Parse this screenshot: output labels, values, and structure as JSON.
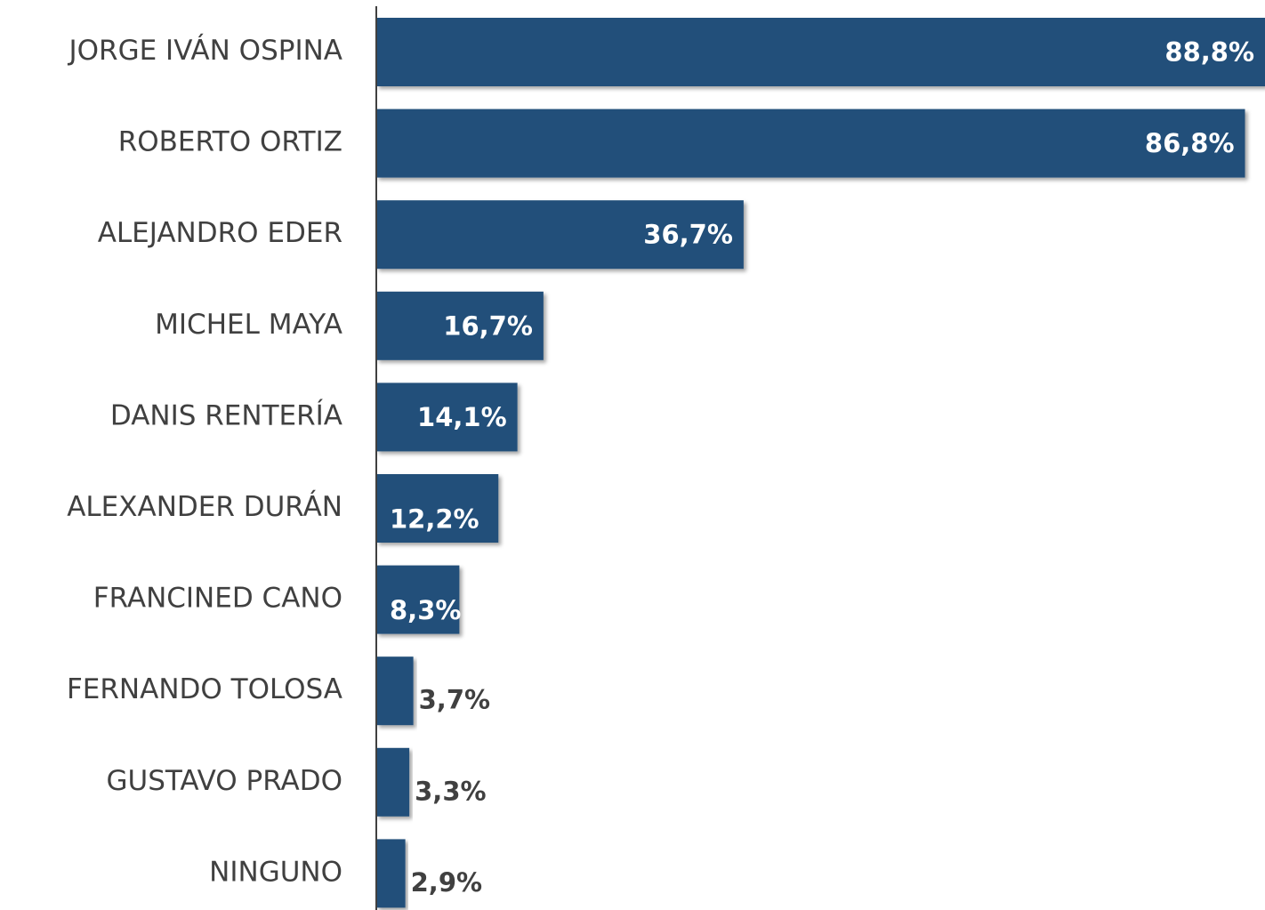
{
  "chart_data": {
    "type": "barh",
    "categories": [
      "JORGE IVÁN OSPINA",
      "ROBERTO ORTIZ",
      "ALEJANDRO EDER",
      "MICHEL MAYA",
      "DANIS RENTERÍA",
      "ALEXANDER DURÁN",
      "FRANCINED CANO",
      "FERNANDO TOLOSA",
      "GUSTAVO PRADO",
      "NINGUNO"
    ],
    "values": [
      88.8,
      86.8,
      36.7,
      16.7,
      14.1,
      12.2,
      8.3,
      3.7,
      3.3,
      2.9
    ],
    "value_labels": [
      "88,8%",
      "86,8%",
      "36,7%",
      "16,7%",
      "14,1%",
      "12,2%",
      "8,3%",
      "3,7%",
      "3,3%",
      "2,9%"
    ],
    "color": "#214f7a"
  }
}
